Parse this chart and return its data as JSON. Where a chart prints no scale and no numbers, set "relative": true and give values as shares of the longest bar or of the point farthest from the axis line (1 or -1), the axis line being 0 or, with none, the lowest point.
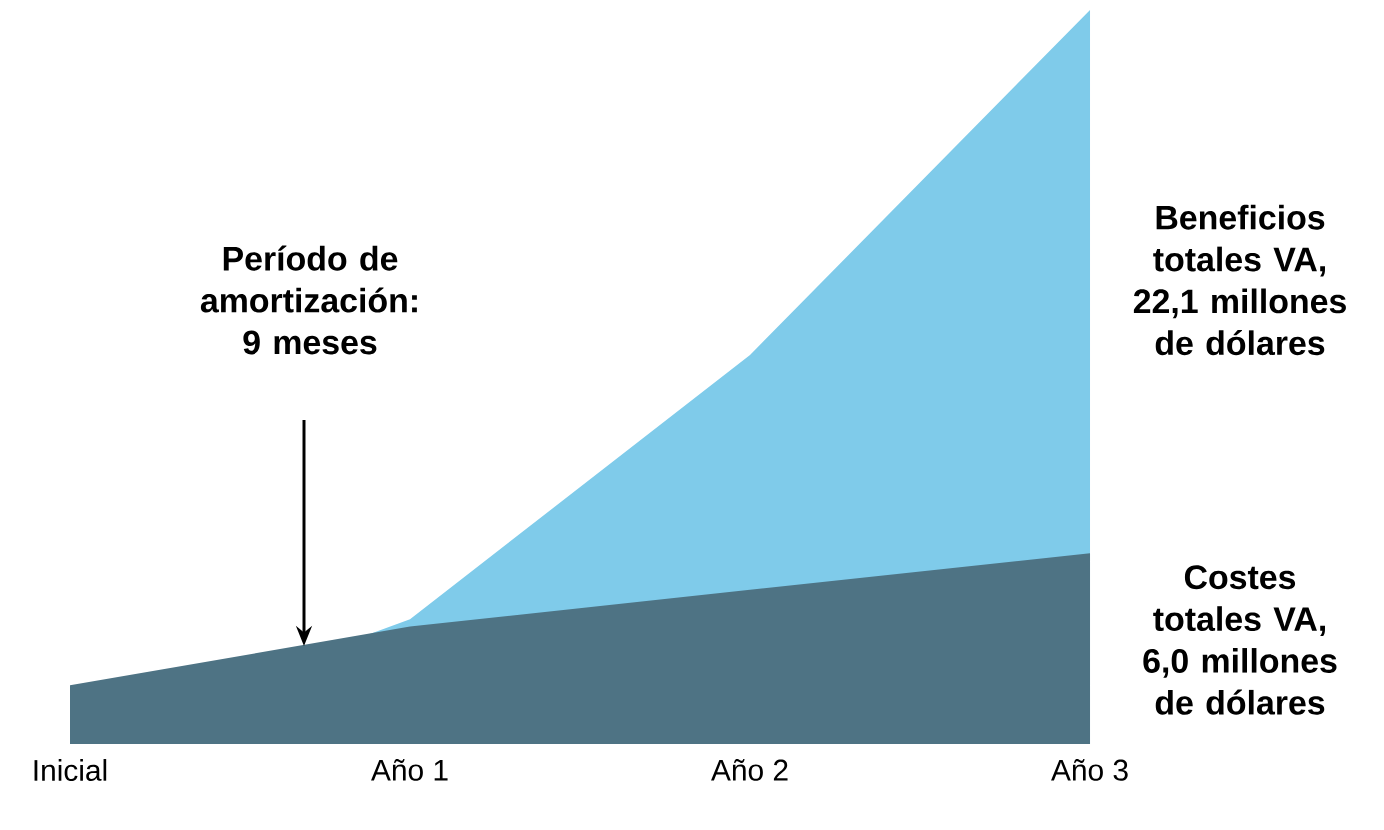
{
  "chart_data": {
    "type": "area",
    "relative": true,
    "categories": [
      "Inicial",
      "Año 1",
      "Año 2",
      "Año 3"
    ],
    "series": [
      {
        "name": "Beneficios totales VA, 22,1 millones de dólares",
        "color": "#7fcbea",
        "values": [
          0,
          0.17,
          0.53,
          1.0
        ]
      },
      {
        "name": "Costes totales VA, 6,0 millones de dólares",
        "color": "#4e7384",
        "values": [
          0.08,
          0.16,
          0.21,
          0.26
        ]
      }
    ],
    "annotations": [
      "Período de amortización: 9 meses"
    ]
  }
}
